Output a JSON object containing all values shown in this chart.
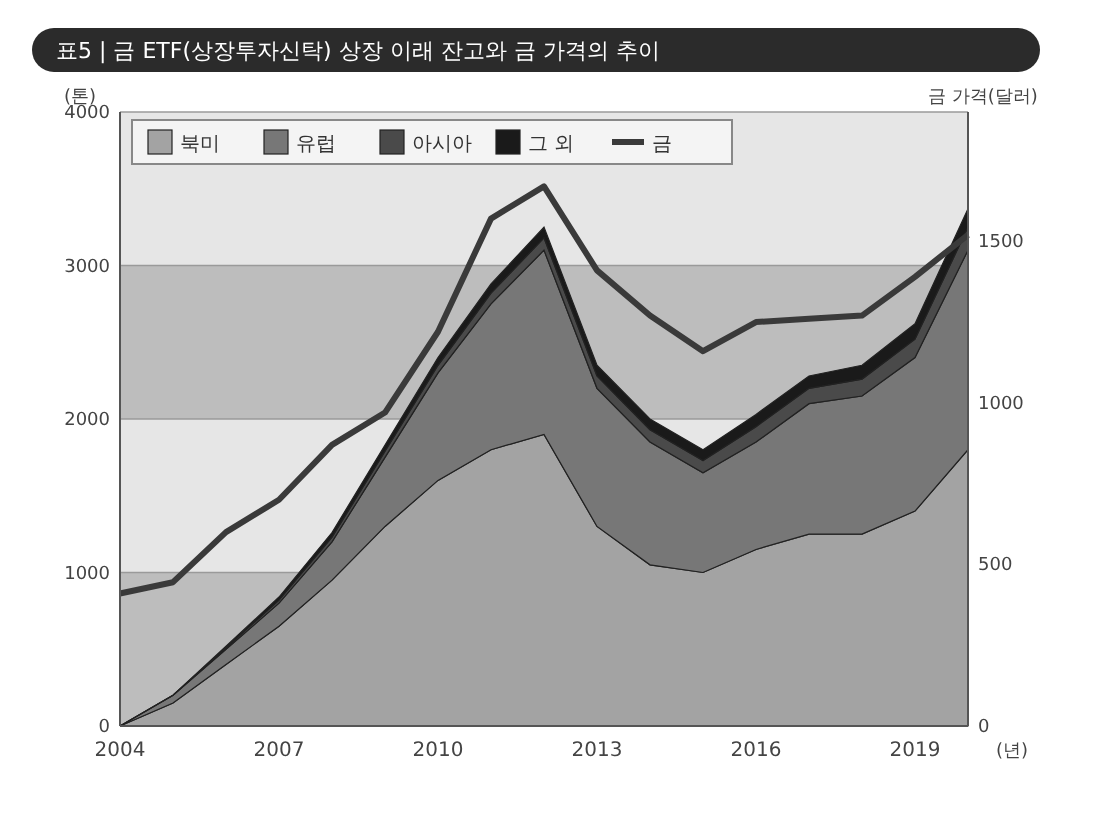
{
  "chart_data": {
    "type": "area",
    "stacked": true,
    "title": "표5 | 금 ETF(상장투자신탁) 상장 이래 잔고와 금 가격의 추이",
    "xlabel": "(년)",
    "ylabel": "(톤)",
    "y2label": "금 가격(달러)",
    "x": [
      2004,
      2005,
      2006,
      2007,
      2008,
      2009,
      2010,
      2011,
      2012,
      2013,
      2014,
      2015,
      2016,
      2017,
      2018,
      2019,
      2020
    ],
    "xlim": [
      2004,
      2020
    ],
    "xticks": [
      2004,
      2007,
      2010,
      2013,
      2016,
      2019
    ],
    "ylim": [
      0,
      4000
    ],
    "yticks": [
      0,
      1000,
      2000,
      3000,
      4000
    ],
    "y2lim": [
      0,
      1900
    ],
    "y2ticks": [
      0,
      500,
      1000,
      1500
    ],
    "grid": "y",
    "legend": "top left",
    "series": [
      {
        "name": "북미",
        "color": "#a3a3a3",
        "values": [
          0,
          150,
          400,
          650,
          950,
          1300,
          1600,
          1800,
          1900,
          1300,
          1050,
          1000,
          1150,
          1250,
          1250,
          1400,
          1800
        ]
      },
      {
        "name": "유럽",
        "color": "#777777",
        "values": [
          0,
          50,
          100,
          150,
          250,
          450,
          700,
          950,
          1200,
          900,
          800,
          650,
          700,
          850,
          900,
          1000,
          1300
        ]
      },
      {
        "name": "아시아",
        "color": "#4a4a4a",
        "values": [
          0,
          0,
          10,
          20,
          30,
          40,
          50,
          70,
          80,
          80,
          80,
          80,
          100,
          100,
          110,
          120,
          150
        ]
      },
      {
        "name": "그 외",
        "color": "#1a1a1a",
        "values": [
          0,
          0,
          10,
          20,
          30,
          40,
          50,
          60,
          70,
          70,
          70,
          70,
          80,
          80,
          90,
          100,
          120
        ]
      },
      {
        "name": "금",
        "type": "line",
        "axis": "y2",
        "color": "#3a3a3a",
        "values": [
          410,
          445,
          600,
          700,
          870,
          970,
          1220,
          1570,
          1670,
          1410,
          1270,
          1160,
          1250,
          1260,
          1270,
          1390,
          1520
        ]
      }
    ]
  }
}
